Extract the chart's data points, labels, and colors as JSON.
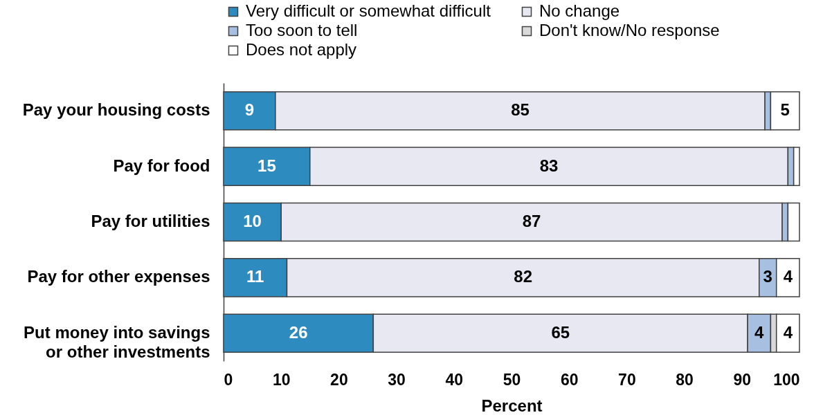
{
  "chart_data": {
    "type": "bar",
    "orientation": "horizontal",
    "stacked": true,
    "categories": [
      "Pay your housing costs",
      "Pay for food",
      "Pay for utilities",
      "Pay for other expenses",
      "Put money into savings or other investments"
    ],
    "series": [
      {
        "name": "Very difficult or somewhat difficult",
        "color": "#2e8bc0",
        "values": [
          9,
          15,
          10,
          11,
          26
        ],
        "value_labels": [
          "9",
          "15",
          "10",
          "11",
          "26"
        ]
      },
      {
        "name": "No change",
        "color": "#e8e8f2",
        "values": [
          85,
          83,
          87,
          82,
          65
        ],
        "value_labels": [
          "85",
          "83",
          "87",
          "82",
          "65"
        ]
      },
      {
        "name": "Too soon to tell",
        "color": "#a7bfe0",
        "values": [
          1,
          1,
          1,
          3,
          4
        ],
        "value_labels": [
          null,
          null,
          null,
          "3",
          "4"
        ]
      },
      {
        "name": "Don't know/No response",
        "color": "#d9d9d9",
        "values": [
          null,
          null,
          null,
          null,
          1
        ],
        "value_labels": [
          null,
          null,
          null,
          null,
          null
        ]
      },
      {
        "name": "Does not apply",
        "color": "#ffffff",
        "values": [
          5,
          1,
          2,
          4,
          4
        ],
        "value_labels": [
          "5",
          null,
          null,
          "4",
          "4"
        ]
      }
    ],
    "xlabel": "Percent",
    "xlim": [
      0,
      100
    ],
    "xticks": [
      0,
      10,
      20,
      30,
      40,
      50,
      60,
      70,
      80,
      90,
      100
    ],
    "legend": "top",
    "grid": false
  }
}
